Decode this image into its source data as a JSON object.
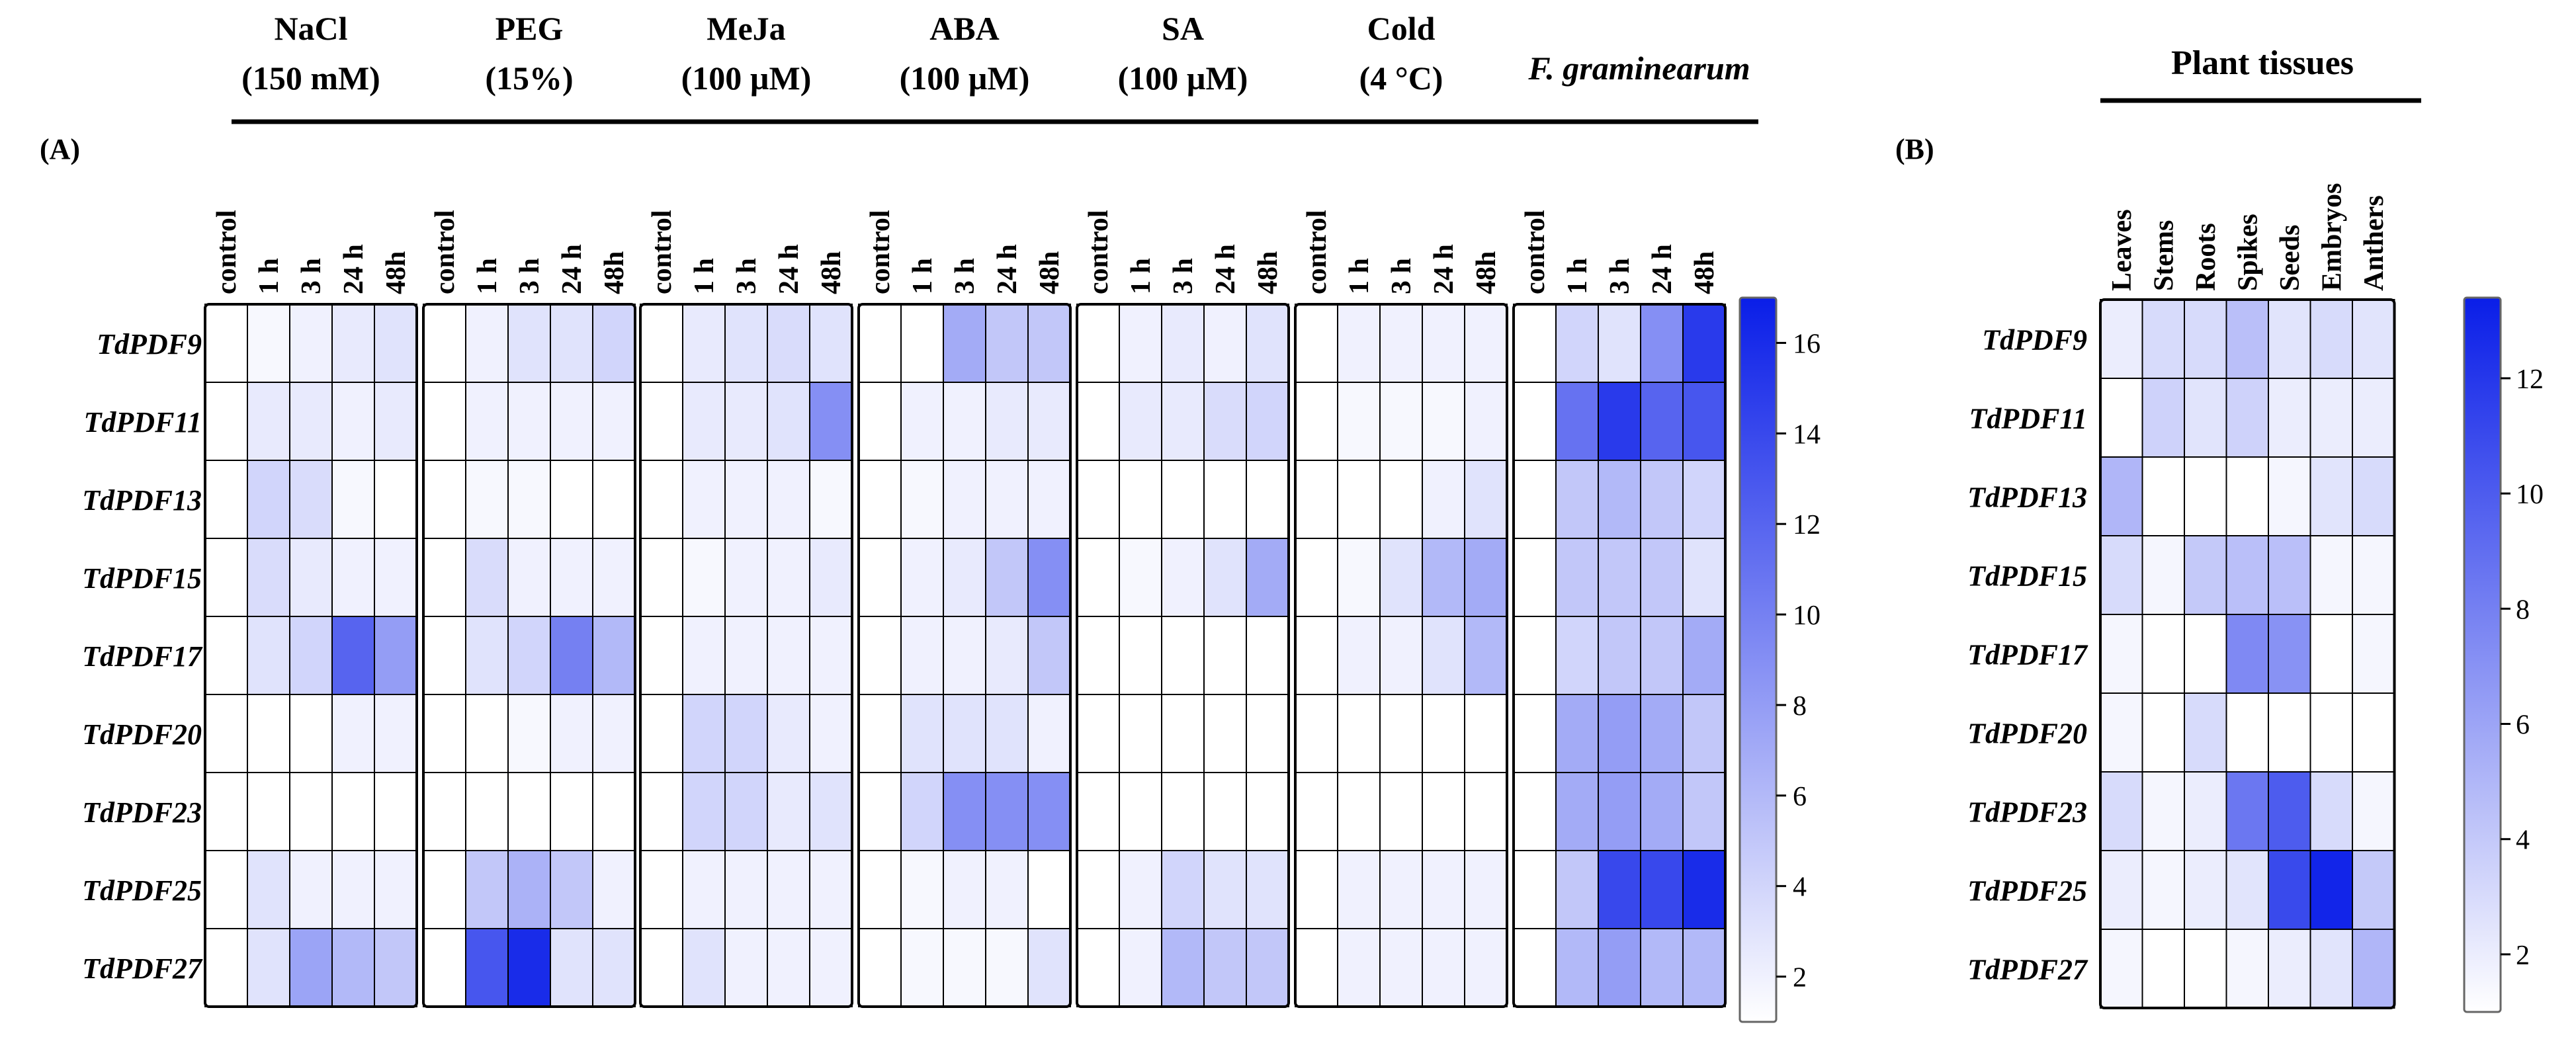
{
  "chart_data": [
    {
      "type": "heatmap",
      "panel_label": "(A)",
      "rows": [
        "TdPDF9",
        "TdPDF11",
        "TdPDF13",
        "TdPDF15",
        "TdPDF17",
        "TdPDF20",
        "TdPDF23",
        "TdPDF25",
        "TdPDF27"
      ],
      "column_labels": [
        "control",
        "1 h",
        "3 h",
        "24 h",
        "48h"
      ],
      "groups": [
        {
          "title_lines": [
            "NaCl",
            "(150 mM)"
          ],
          "italic": false,
          "values": [
            [
              1,
              1.5,
              2,
              2.5,
              3
            ],
            [
              1,
              2.5,
              2.5,
              2,
              2.5
            ],
            [
              1,
              4,
              3.5,
              1.5,
              1
            ],
            [
              1,
              3.5,
              2.5,
              2,
              2
            ],
            [
              1,
              3,
              4,
              12,
              8
            ],
            [
              1,
              1,
              1,
              2,
              2
            ],
            [
              1,
              1,
              1,
              1,
              1
            ],
            [
              1,
              3,
              2,
              2,
              2
            ],
            [
              1,
              3,
              7.5,
              6,
              5
            ]
          ]
        },
        {
          "title_lines": [
            "PEG",
            "(15%)"
          ],
          "italic": false,
          "values": [
            [
              1,
              2,
              3,
              3,
              4
            ],
            [
              1,
              2,
              2,
              2,
              2
            ],
            [
              1,
              1.5,
              1.5,
              1,
              1
            ],
            [
              1,
              3.5,
              2,
              2,
              2
            ],
            [
              1,
              3,
              4,
              10,
              6
            ],
            [
              1,
              1,
              1.5,
              2,
              2
            ],
            [
              1,
              1,
              1,
              1,
              1
            ],
            [
              1,
              5,
              6.5,
              5,
              2
            ],
            [
              1,
              13,
              16,
              3,
              3
            ]
          ]
        },
        {
          "title_lines": [
            "MeJa",
            "(100 µM)"
          ],
          "italic": false,
          "values": [
            [
              1,
              2.5,
              3,
              3.5,
              3
            ],
            [
              1,
              2.5,
              2.5,
              3,
              9
            ],
            [
              1,
              2,
              2,
              2,
              1.5
            ],
            [
              1,
              1.5,
              2,
              2,
              2.5
            ],
            [
              1,
              2,
              2,
              2,
              2
            ],
            [
              1,
              4,
              4,
              2.5,
              2
            ],
            [
              1,
              4,
              4,
              2.5,
              3
            ],
            [
              1,
              2,
              2,
              2,
              2
            ],
            [
              1,
              3,
              2,
              2,
              2
            ]
          ]
        },
        {
          "title_lines": [
            "ABA",
            "(100 µM)"
          ],
          "italic": false,
          "values": [
            [
              1,
              1,
              7,
              5,
              5
            ],
            [
              1,
              2,
              2,
              2.5,
              2.5
            ],
            [
              1,
              1.5,
              2,
              2,
              2
            ],
            [
              1,
              2,
              2.5,
              5,
              9
            ],
            [
              1,
              2,
              2,
              2.5,
              5
            ],
            [
              1,
              3,
              3,
              3,
              2
            ],
            [
              1,
              4,
              9,
              9,
              9
            ],
            [
              1,
              1.5,
              2,
              2,
              1
            ],
            [
              1,
              1.5,
              1.5,
              1.5,
              3
            ]
          ]
        },
        {
          "title_lines": [
            "SA",
            "(100 µM)"
          ],
          "italic": false,
          "values": [
            [
              1,
              2,
              2.5,
              2,
              3
            ],
            [
              1,
              2.5,
              2.5,
              3.5,
              4
            ],
            [
              1,
              1,
              1,
              1,
              1
            ],
            [
              1,
              1.5,
              2,
              3,
              7
            ],
            [
              1,
              1,
              1,
              1,
              1
            ],
            [
              1,
              1,
              1,
              1,
              1
            ],
            [
              1,
              1,
              1,
              1,
              1
            ],
            [
              1,
              2,
              4,
              3,
              3
            ],
            [
              1,
              2,
              6,
              5,
              5
            ]
          ]
        },
        {
          "title_lines": [
            "Cold",
            "(4 °C)"
          ],
          "italic": false,
          "values": [
            [
              1,
              2,
              2,
              2,
              2
            ],
            [
              1,
              1.5,
              1.5,
              1.5,
              2
            ],
            [
              1,
              1,
              1,
              2,
              3
            ],
            [
              1,
              1.5,
              3,
              6,
              7
            ],
            [
              1,
              2,
              2,
              3,
              6
            ],
            [
              1,
              1,
              1,
              1,
              1
            ],
            [
              1,
              1,
              1,
              1,
              1
            ],
            [
              1,
              2,
              2,
              2,
              2
            ],
            [
              1,
              2,
              2,
              2,
              2
            ]
          ]
        },
        {
          "title_lines": [
            "F. graminearum"
          ],
          "italic": true,
          "values": [
            [
              1,
              4,
              3,
              9,
              15
            ],
            [
              1,
              11,
              15,
              12,
              13
            ],
            [
              1,
              5,
              6,
              5,
              4
            ],
            [
              1,
              5,
              5,
              5,
              3
            ],
            [
              1,
              4,
              5,
              5,
              7
            ],
            [
              1,
              7,
              8,
              7,
              5
            ],
            [
              1,
              7,
              8,
              7,
              5
            ],
            [
              1,
              5,
              14,
              14,
              16
            ],
            [
              1,
              6,
              8,
              6,
              6
            ]
          ]
        }
      ],
      "colorbar": {
        "min": 1,
        "max": 17,
        "ticks": [
          2,
          4,
          6,
          8,
          10,
          12,
          14,
          16
        ],
        "low_color": "#ffffff",
        "high_color": "#0a1ee8"
      }
    },
    {
      "type": "heatmap",
      "panel_label": "(B)",
      "title": "Plant tissues",
      "rows": [
        "TdPDF9",
        "TdPDF11",
        "TdPDF13",
        "TdPDF15",
        "TdPDF17",
        "TdPDF20",
        "TdPDF23",
        "TdPDF25",
        "TdPDF27"
      ],
      "column_labels": [
        "Leaves",
        "Stems",
        "Roots",
        "Spikes",
        "Seeds",
        "Embryos",
        "Anthers"
      ],
      "values": [
        [
          2,
          3,
          3,
          4.5,
          2.5,
          3,
          2.5
        ],
        [
          1,
          3.5,
          2.5,
          3.5,
          2,
          2,
          2
        ],
        [
          5,
          1,
          1,
          1,
          1.5,
          2.5,
          3
        ],
        [
          3,
          1.5,
          4,
          4.5,
          4.5,
          1.5,
          1.5
        ],
        [
          1.5,
          1,
          1,
          7.5,
          7,
          1,
          1.5
        ],
        [
          1.5,
          1,
          3,
          1,
          1,
          1,
          1
        ],
        [
          3,
          1.5,
          2,
          8.5,
          10,
          3,
          1.5
        ],
        [
          2,
          1.5,
          2,
          2.5,
          11,
          13,
          4
        ],
        [
          1.5,
          1,
          1,
          1.5,
          2,
          2.5,
          5
        ]
      ],
      "colorbar": {
        "min": 1,
        "max": 13.4,
        "ticks": [
          2,
          4,
          6,
          8,
          10,
          12
        ],
        "low_color": "#ffffff",
        "high_color": "#0a1ee8"
      }
    }
  ]
}
